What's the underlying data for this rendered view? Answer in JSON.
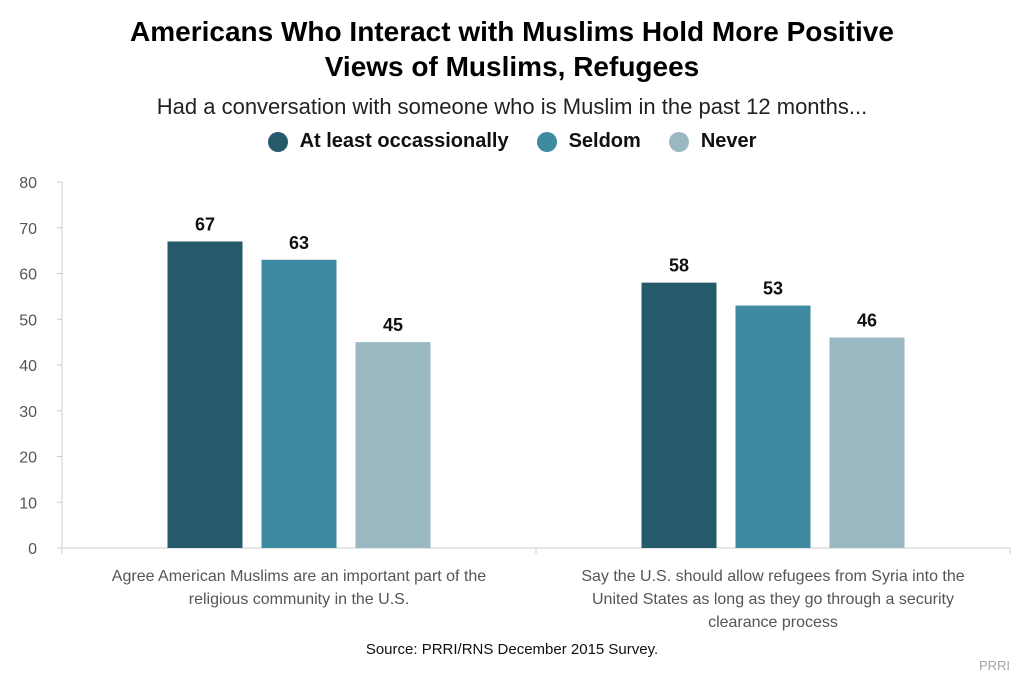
{
  "chart_data": {
    "type": "bar",
    "title": "Americans Who Interact with Muslims Hold More Positive Views of Muslims, Refugees",
    "title_lines": [
      "Americans Who Interact with Muslims Hold More Positive",
      "Views of Muslims, Refugees"
    ],
    "subtitle": "Had a conversation with someone who is Muslim in the past 12 months...",
    "categories": [
      "Agree American Muslims are an important part of the religious community in the U.S.",
      "Say the U.S. should allow refugees from Syria into the United States as long as they go through a security clearance process"
    ],
    "category_label_lines": [
      [
        "Agree American Muslims are an important part of the",
        "religious community in the U.S."
      ],
      [
        "Say the U.S. should allow refugees from Syria into the",
        "United States as long as they go through a security",
        "clearance process"
      ]
    ],
    "series": [
      {
        "name": "At least occassionally",
        "values": [
          67,
          58
        ],
        "color": "#245a6a"
      },
      {
        "name": "Seldom",
        "values": [
          63,
          53
        ],
        "color": "#3e8aa1"
      },
      {
        "name": "Never",
        "values": [
          45,
          46
        ],
        "color": "#9ab8c2"
      }
    ],
    "ylim": [
      0,
      80
    ],
    "yticks": [
      0,
      10,
      20,
      30,
      40,
      50,
      60,
      70,
      80
    ],
    "grid": false,
    "legend_position": "top-center",
    "data_labels": true
  },
  "source": "Source: PRRI/RNS December 2015 Survey.",
  "watermark": "PRRI",
  "colors": {
    "axis": "#cccccc",
    "tick_text": "#555555",
    "category_text": "#555555"
  }
}
